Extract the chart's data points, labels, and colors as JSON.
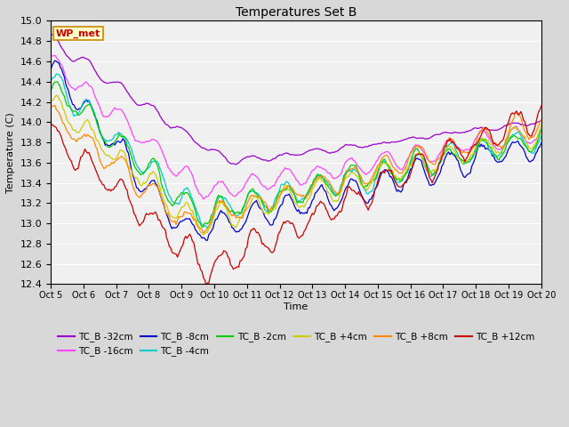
{
  "title": "Temperatures Set B",
  "xlabel": "Time",
  "ylabel": "Temperature (C)",
  "ylim": [
    12.4,
    15.0
  ],
  "xlim": [
    0,
    360
  ],
  "fig_bg": "#d8d8d8",
  "plot_bg": "#f0f0f0",
  "grid_color": "#ffffff",
  "series": [
    {
      "label": "TC_B -32cm",
      "color": "#9900cc"
    },
    {
      "label": "TC_B -16cm",
      "color": "#ff44ff"
    },
    {
      "label": "TC_B -8cm",
      "color": "#0000cc"
    },
    {
      "label": "TC_B -4cm",
      "color": "#00cccc"
    },
    {
      "label": "TC_B -2cm",
      "color": "#00cc00"
    },
    {
      "label": "TC_B +4cm",
      "color": "#cccc00"
    },
    {
      "label": "TC_B +8cm",
      "color": "#ff8800"
    },
    {
      "label": "TC_B +12cm",
      "color": "#cc0000"
    }
  ],
  "xtick_labels": [
    "Oct 5",
    "Oct 6",
    "Oct 7",
    "Oct 8",
    "Oct 9",
    "Oct 10",
    "Oct 11",
    "Oct 12",
    "Oct 13",
    "Oct 14",
    "Oct 15",
    "Oct 16",
    "Oct 17",
    "Oct 18",
    "Oct 19",
    "Oct 20"
  ],
  "xtick_positions": [
    0,
    24,
    48,
    72,
    96,
    120,
    144,
    168,
    192,
    216,
    240,
    264,
    288,
    312,
    336,
    360
  ],
  "yticks": [
    12.4,
    12.6,
    12.8,
    13.0,
    13.2,
    13.4,
    13.6,
    13.8,
    14.0,
    14.2,
    14.4,
    14.6,
    14.8,
    15.0
  ],
  "wp_met_label": "WP_met",
  "wp_met_color": "#cc0000",
  "wp_met_bg": "#ffffcc",
  "wp_met_border": "#cc8800"
}
